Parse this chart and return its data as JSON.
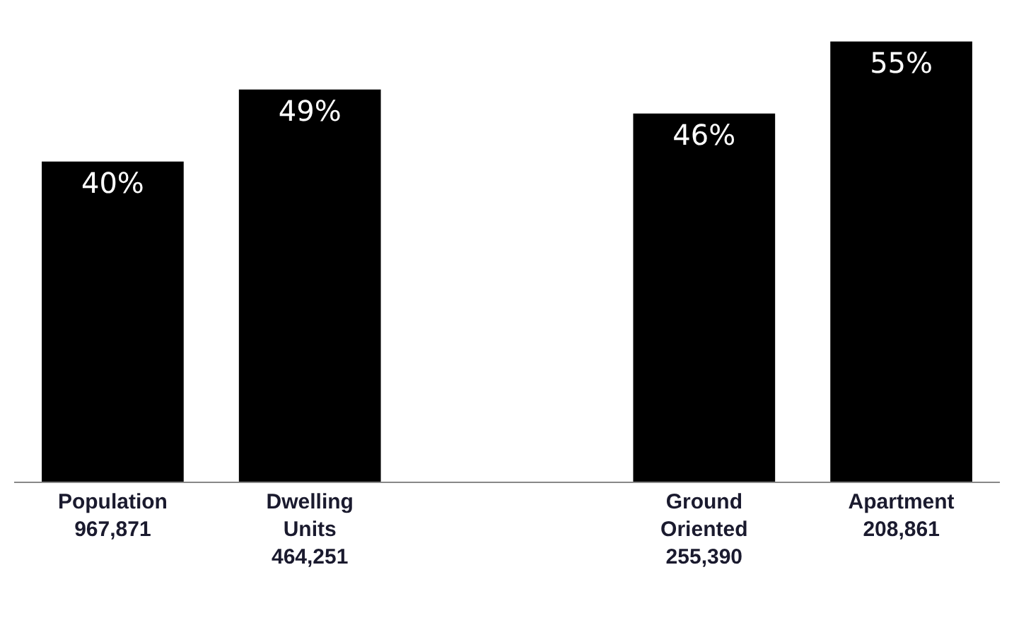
{
  "chart_data": {
    "type": "bar",
    "categories": [
      "Population\n967,871",
      "Dwelling\nUnits\n464,251",
      null,
      "Ground\nOriented\n255,390",
      "Apartment\n208,861"
    ],
    "values": [
      40,
      49,
      null,
      46,
      55
    ],
    "value_labels": [
      "40%",
      "49%",
      null,
      "46%",
      "55%"
    ],
    "color": "#000000",
    "legend": false
  }
}
